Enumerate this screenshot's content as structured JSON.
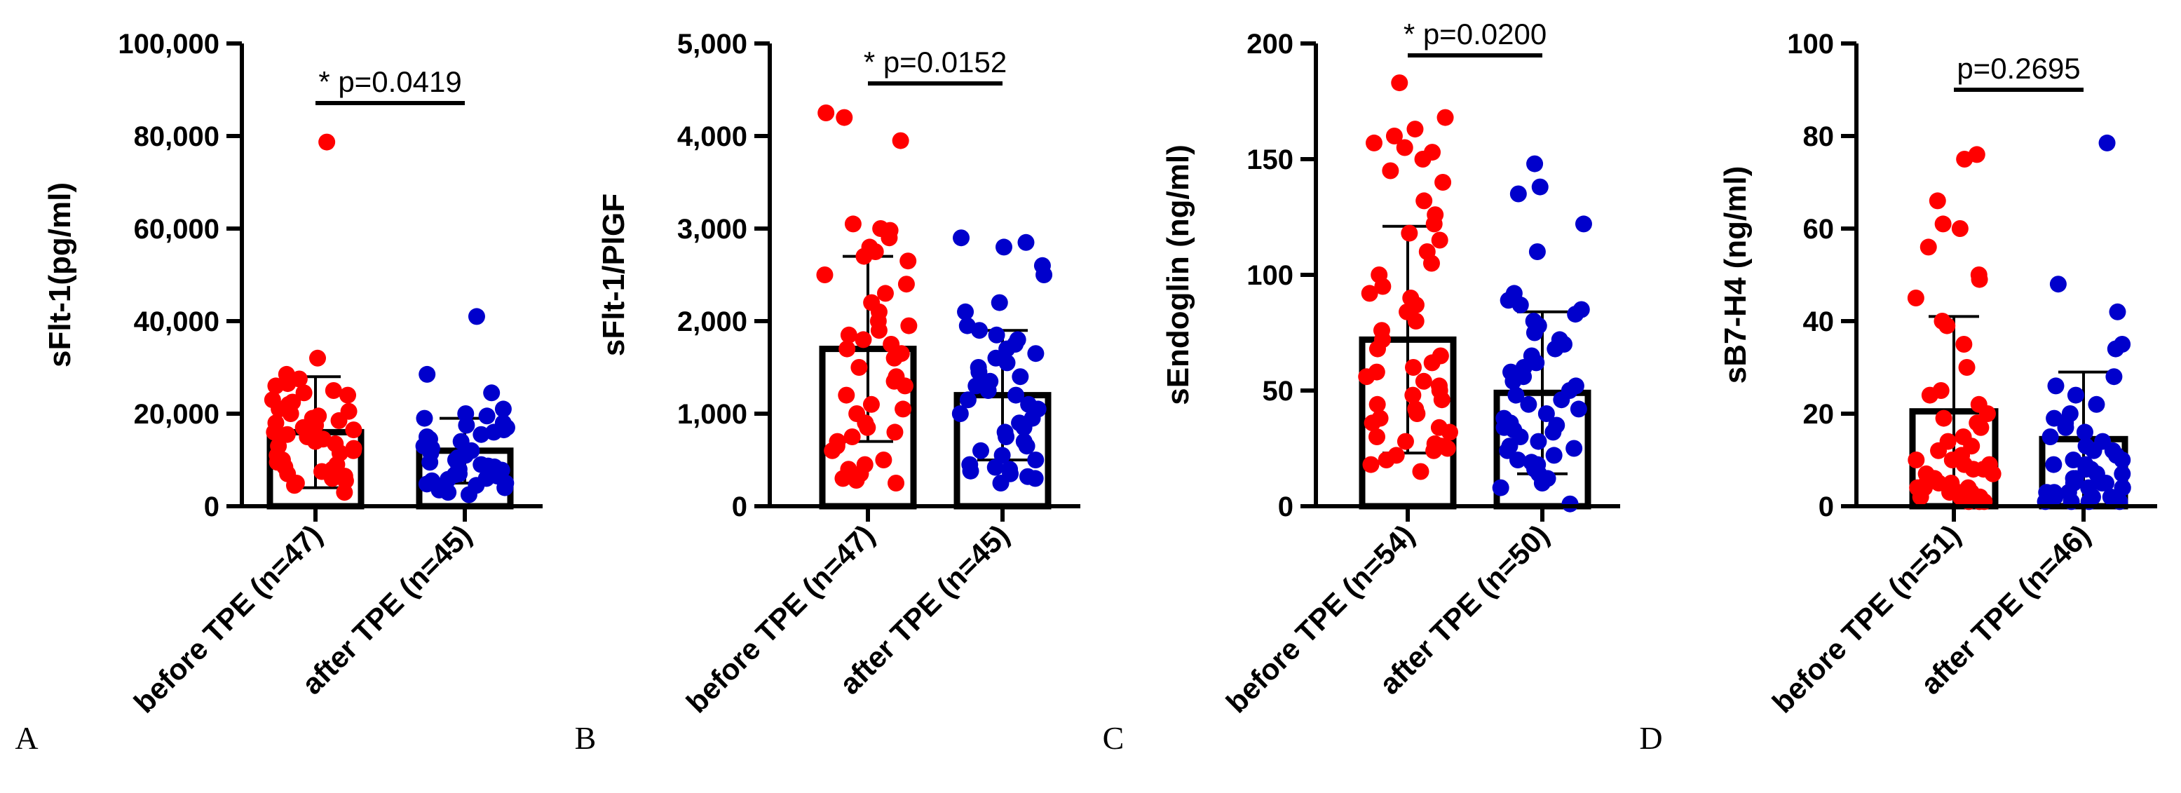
{
  "colors": {
    "before": "#ff0000",
    "after": "#0000cc",
    "ink": "#000000"
  },
  "chart_data": [
    {
      "panel_letter": "A",
      "type": "bar",
      "ylabel": "sFlt-1(pg/ml)",
      "ylim": [
        0,
        100000
      ],
      "yticks": [
        0,
        20000,
        40000,
        60000,
        80000,
        100000
      ],
      "ytick_labels": [
        "0",
        "20,000",
        "40,000",
        "60,000",
        "80,000",
        "100,000"
      ],
      "categories": [
        "before TPE (n=47)",
        "after TPE (n=45)"
      ],
      "series": [
        {
          "name": "before TPE (n=47)",
          "color": "before",
          "mean": 16000,
          "sd": 12000,
          "points": [
            78700,
            32000,
            28500,
            27500,
            26500,
            26000,
            25000,
            24500,
            24000,
            23000,
            22500,
            22000,
            21000,
            20500,
            20000,
            19500,
            19000,
            18500,
            18000,
            17500,
            17000,
            16500,
            16000,
            15500,
            15000,
            14500,
            14000,
            13500,
            13000,
            12500,
            12000,
            11500,
            11000,
            10500,
            10000,
            9500,
            9000,
            8500,
            8000,
            7500,
            7000,
            6500,
            6000,
            5500,
            5000,
            4500,
            3000
          ]
        },
        {
          "name": "after TPE (n=45)",
          "color": "after",
          "mean": 12000,
          "sd": 7000,
          "points": [
            41000,
            28500,
            24500,
            21000,
            20000,
            19500,
            19000,
            18000,
            17500,
            17000,
            16500,
            16000,
            15500,
            15000,
            14500,
            14000,
            13500,
            13000,
            12500,
            12000,
            11500,
            11000,
            10500,
            10000,
            9800,
            9500,
            9000,
            8700,
            8500,
            8000,
            7800,
            7500,
            7000,
            6800,
            6500,
            6000,
            5800,
            5500,
            5000,
            4800,
            4500,
            4000,
            3500,
            3000,
            2500
          ]
        }
      ],
      "significance": "* p=0.0419"
    },
    {
      "panel_letter": "B",
      "type": "bar",
      "ylabel": "sFlt-1/PlGF",
      "ylim": [
        0,
        5000
      ],
      "yticks": [
        0,
        1000,
        2000,
        3000,
        4000,
        5000
      ],
      "ytick_labels": [
        "0",
        "1,000",
        "2,000",
        "3,000",
        "4,000",
        "5,000"
      ],
      "categories": [
        "before TPE (n=47)",
        "after TPE (n=45)"
      ],
      "series": [
        {
          "name": "before TPE (n=47)",
          "color": "before",
          "mean": 1700,
          "sd": 1000,
          "points": [
            4250,
            4200,
            3950,
            3050,
            3000,
            2980,
            2900,
            2800,
            2750,
            2700,
            2650,
            2500,
            2400,
            2300,
            2200,
            2100,
            2000,
            1950,
            1900,
            1850,
            1800,
            1750,
            1700,
            1650,
            1600,
            1500,
            1400,
            1350,
            1300,
            1200,
            1100,
            1050,
            1000,
            900,
            850,
            800,
            750,
            700,
            650,
            600,
            500,
            450,
            400,
            350,
            300,
            280,
            250
          ]
        },
        {
          "name": "after TPE (n=45)",
          "color": "after",
          "mean": 1200,
          "sd": 700,
          "points": [
            2900,
            2850,
            2800,
            2600,
            2500,
            2200,
            2100,
            1950,
            1900,
            1850,
            1800,
            1750,
            1700,
            1650,
            1600,
            1550,
            1500,
            1450,
            1400,
            1350,
            1300,
            1250,
            1200,
            1150,
            1100,
            1050,
            1000,
            950,
            900,
            850,
            800,
            750,
            700,
            650,
            600,
            550,
            500,
            450,
            420,
            400,
            380,
            350,
            320,
            300,
            250
          ]
        }
      ],
      "significance": "* p=0.0152"
    },
    {
      "panel_letter": "C",
      "type": "bar",
      "ylabel": "sEndoglin (ng/ml)",
      "ylim": [
        0,
        200
      ],
      "yticks": [
        0,
        50,
        100,
        150,
        200
      ],
      "ytick_labels": [
        "0",
        "50",
        "100",
        "150",
        "200"
      ],
      "categories": [
        "before TPE (n=54)",
        "after TPE (n=50)"
      ],
      "series": [
        {
          "name": "before TPE (n=54)",
          "color": "before",
          "mean": 72,
          "sd": 49,
          "points": [
            183,
            168,
            163,
            160,
            157,
            155,
            153,
            150,
            145,
            140,
            132,
            126,
            122,
            118,
            115,
            110,
            105,
            100,
            95,
            92,
            90,
            87,
            84,
            80,
            76,
            72,
            68,
            65,
            62,
            60,
            58,
            56,
            54,
            52,
            50,
            48,
            46,
            44,
            42,
            40,
            38,
            36,
            34,
            32,
            30,
            28,
            27,
            26,
            25,
            24,
            22,
            20,
            18,
            15
          ]
        },
        {
          "name": "after TPE (n=50)",
          "color": "after",
          "mean": 49,
          "sd": 35,
          "points": [
            148,
            138,
            135,
            122,
            110,
            92,
            89,
            87,
            85,
            83,
            80,
            78,
            75,
            72,
            70,
            68,
            65,
            62,
            60,
            58,
            56,
            54,
            52,
            50,
            48,
            46,
            44,
            42,
            40,
            38,
            36,
            35,
            34,
            33,
            32,
            30,
            28,
            26,
            25,
            24,
            22,
            20,
            19,
            18,
            16,
            14,
            12,
            10,
            8,
            1
          ]
        }
      ],
      "significance": "* p=0.0200"
    },
    {
      "panel_letter": "D",
      "type": "bar",
      "ylabel": "sB7-H4 (ng/ml)",
      "ylim": [
        0,
        100
      ],
      "yticks": [
        0,
        20,
        40,
        60,
        80,
        100
      ],
      "ytick_labels": [
        "0",
        "20",
        "40",
        "60",
        "80",
        "100"
      ],
      "categories": [
        "before TPE (n=51)",
        "after TPE (n=46)"
      ],
      "series": [
        {
          "name": "before TPE (n=51)",
          "color": "before",
          "mean": 20.5,
          "sd": 20.5,
          "points": [
            76,
            75,
            66,
            61,
            60,
            56,
            50,
            49,
            45,
            40,
            39,
            35,
            30,
            25,
            24,
            22,
            20,
            19,
            18,
            17,
            15,
            14,
            13,
            12,
            11,
            10,
            10,
            9,
            9,
            8,
            8,
            7,
            7,
            6,
            6,
            5,
            5,
            5,
            4,
            4,
            4,
            3,
            3,
            3,
            2,
            2,
            2,
            2,
            1,
            1,
            1
          ]
        },
        {
          "name": "after TPE (n=46)",
          "color": "after",
          "mean": 14.5,
          "sd": 14.5,
          "points": [
            78.5,
            48,
            42,
            35,
            34,
            28,
            26,
            24,
            22,
            20,
            19,
            18,
            17,
            16,
            15,
            14,
            13,
            12,
            12,
            11,
            10,
            10,
            9,
            9,
            8,
            8,
            7,
            7,
            6,
            6,
            5,
            5,
            5,
            4,
            4,
            4,
            3,
            3,
            3,
            2,
            2,
            2,
            1,
            1,
            1,
            1
          ]
        }
      ],
      "significance": "p=0.2695"
    }
  ]
}
